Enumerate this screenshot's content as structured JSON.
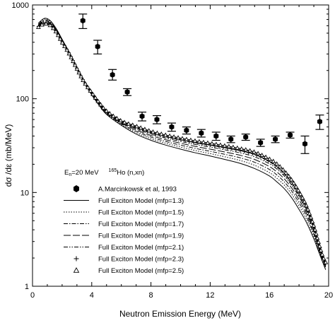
{
  "chart_data": {
    "type": "line",
    "xlabel": "Neutron Emission Energy (MeV)",
    "ylabel": "dσ /dε   (mb/MeV)",
    "xlim": [
      0,
      20
    ],
    "ylim": [
      1,
      1000
    ],
    "yscale": "log",
    "x_ticks": [
      "0",
      "4",
      "8",
      "12",
      "16",
      "20"
    ],
    "y_ticks": [
      "1",
      "10",
      "100",
      "1000"
    ],
    "grid": false,
    "legend_position": "lower-left",
    "legend_header": {
      "energy_label": "E",
      "energy_sub": "n",
      "energy_value": "=20 MeV",
      "mass": "165",
      "reaction": "Ho (n,xn)"
    },
    "experiment": {
      "name": "A.Marcinkowsk et al, 1993",
      "x": [
        3.4,
        4.4,
        5.4,
        6.4,
        7.4,
        8.4,
        9.4,
        10.4,
        11.4,
        12.4,
        13.4,
        14.4,
        15.4,
        16.4,
        17.4,
        18.4,
        19.4
      ],
      "y": [
        680,
        360,
        180,
        118,
        65,
        60,
        50,
        46,
        43,
        40,
        37,
        39,
        34,
        37,
        41,
        33,
        57
      ],
      "y_low": [
        560,
        300,
        158,
        108,
        58,
        54,
        45,
        42,
        39,
        36,
        34,
        36,
        31,
        34,
        38,
        26,
        47
      ],
      "y_high": [
        800,
        420,
        205,
        128,
        72,
        66,
        55,
        50,
        47,
        44,
        40,
        42,
        37,
        40,
        44,
        40,
        67
      ]
    },
    "x": [
      0.4,
      0.8,
      1.2,
      1.6,
      2.0,
      2.5,
      3.0,
      3.5,
      4.0,
      4.5,
      5.0,
      6.0,
      7.0,
      8.0,
      9.0,
      10.0,
      11.0,
      12.0,
      13.0,
      14.0,
      15.0,
      16.0,
      16.5,
      17.0,
      17.5,
      18.0,
      18.5,
      19.0,
      19.3,
      19.6,
      19.8
    ],
    "series": [
      {
        "name": "Full Exciton Model (mfp=1.3)",
        "style": "solid",
        "values": [
          640,
          720,
          680,
          560,
          430,
          310,
          215,
          150,
          110,
          85,
          68,
          52,
          42,
          36,
          32,
          29,
          26.5,
          24.5,
          22.5,
          20.5,
          18.0,
          15.0,
          13.0,
          11.0,
          8.8,
          6.6,
          4.8,
          3.2,
          2.4,
          1.8,
          1.5
        ]
      },
      {
        "name": "Full Exciton Model (mfp=1.5)",
        "style": "dotted",
        "values": [
          630,
          705,
          668,
          552,
          425,
          308,
          214,
          150,
          111,
          86,
          69,
          53,
          43.5,
          37.5,
          33.5,
          30.5,
          28.0,
          26.0,
          24.0,
          22.0,
          19.5,
          16.3,
          14.2,
          12.0,
          9.6,
          7.2,
          5.2,
          3.4,
          2.5,
          1.85,
          1.55
        ]
      },
      {
        "name": "Full Exciton Model (mfp=1.7)",
        "style": "dashdot",
        "values": [
          620,
          690,
          655,
          545,
          420,
          306,
          213,
          150,
          112,
          87,
          70,
          54,
          45,
          39,
          35,
          32,
          29.5,
          27.5,
          25.5,
          23.5,
          21.0,
          17.6,
          15.4,
          13.0,
          10.4,
          7.8,
          5.6,
          3.6,
          2.6,
          1.9,
          1.6
        ]
      },
      {
        "name": "Full Exciton Model (mfp=1.9)",
        "style": "longdash",
        "values": [
          610,
          675,
          642,
          538,
          415,
          304,
          212,
          150,
          113,
          88,
          71,
          55,
          46.5,
          40.5,
          36.5,
          33.5,
          31.0,
          29.0,
          27.0,
          25.0,
          22.5,
          18.9,
          16.6,
          14.0,
          11.2,
          8.4,
          6.0,
          3.8,
          2.7,
          1.95,
          1.65
        ]
      },
      {
        "name": "Full Exciton Model (mfp=2.1)",
        "style": "dashdotdot",
        "values": [
          600,
          660,
          630,
          530,
          410,
          302,
          211,
          150,
          114,
          89,
          72,
          56,
          48,
          42,
          38,
          35,
          32.5,
          30.5,
          28.5,
          26.5,
          24.0,
          20.2,
          17.8,
          15.0,
          12.0,
          9.0,
          6.4,
          4.0,
          2.8,
          2.0,
          1.7
        ]
      },
      {
        "name": "Full Exciton Model (mfp=2.3)",
        "style": "plus",
        "values": [
          590,
          645,
          618,
          522,
          405,
          300,
          210,
          150,
          115,
          90,
          73,
          57,
          49.5,
          43.5,
          39.5,
          36.5,
          34.0,
          32.0,
          30.0,
          28.0,
          25.5,
          21.5,
          19.0,
          16.0,
          12.8,
          9.6,
          6.8,
          4.2,
          2.9,
          2.05,
          1.75
        ]
      },
      {
        "name": "Full Exciton Model (mfp=2.5)",
        "style": "triangle",
        "values": [
          580,
          630,
          605,
          515,
          400,
          298,
          209,
          150,
          116,
          91,
          74,
          58,
          51,
          45,
          41,
          38,
          35.5,
          33.5,
          31.5,
          29.5,
          27.0,
          22.8,
          20.2,
          17.0,
          13.6,
          10.2,
          7.2,
          4.4,
          3.0,
          2.1,
          1.8
        ]
      }
    ]
  }
}
